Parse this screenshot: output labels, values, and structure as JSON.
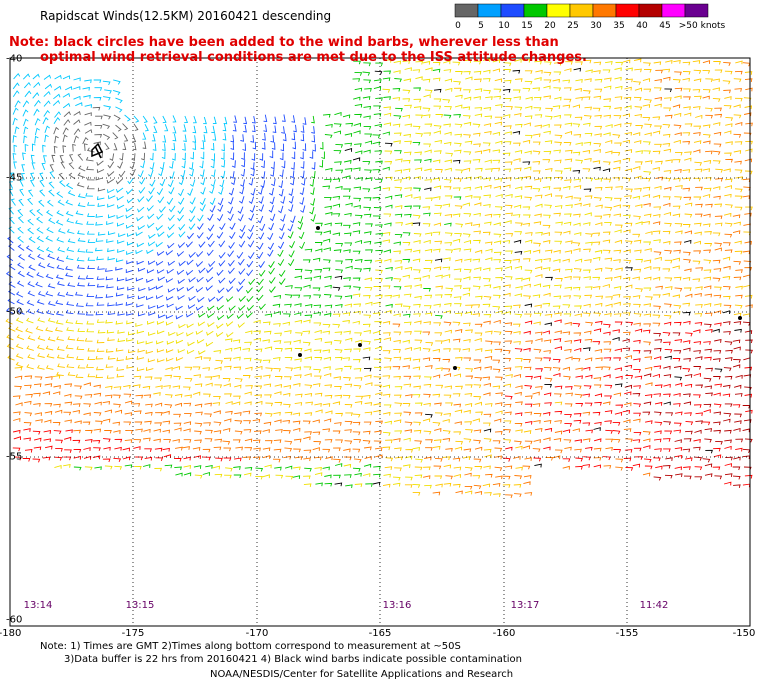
{
  "title": "Rapidscat Winds(12.5KM) 20160421 descending",
  "note_line1": "Note: black circles have been added to the wind barbs, wherever less than",
  "note_line2": "optimal wind retrieval conditions are met due to the ISS attitude changes.",
  "legend": {
    "labels": [
      "0",
      "5",
      "10",
      "15",
      "20",
      "25",
      "30",
      "35",
      "40",
      "45",
      ">50 knots"
    ],
    "colors": [
      "#666666",
      "#00a0ff",
      "#1e4cff",
      "#00c800",
      "#ffff00",
      "#ffc800",
      "#ff7800",
      "#ff0000",
      "#b40000",
      "#ff00ff",
      "#6a0090"
    ]
  },
  "axes": {
    "x_ticks": [
      "-180",
      "-175",
      "-170",
      "-165",
      "-160",
      "-155",
      "-150"
    ],
    "y_ticks": [
      "-40",
      "-45",
      "-50",
      "-55",
      "-60"
    ],
    "xlim": [
      -180,
      -150
    ],
    "ylim": [
      -60,
      -40
    ]
  },
  "times": [
    "13:14",
    "13:15",
    "13:16",
    "13:17",
    "11:42"
  ],
  "footnote_line1": "Note: 1) Times are GMT 2)Times along bottom correspond to measurement at ~50S",
  "footnote_line2": "3)Data buffer is 22 hrs from 20160421 4) Black wind barbs indicate possible contamination",
  "credit": "NOAA/NESDIS/Center for Satellite Applications and Research"
}
